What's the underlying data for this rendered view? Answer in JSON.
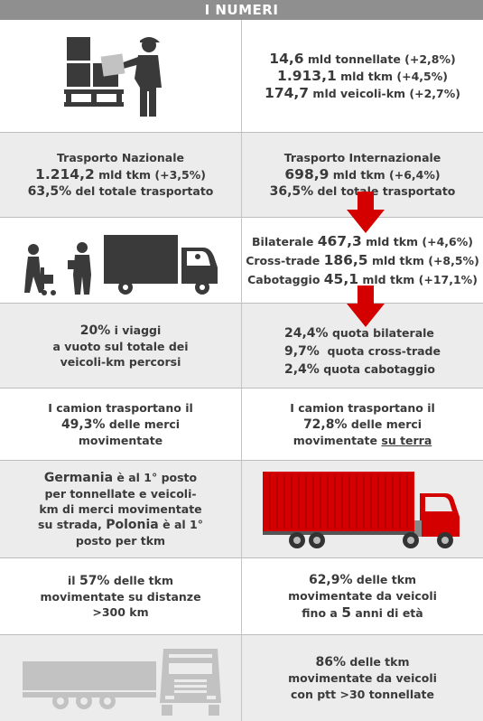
{
  "header": {
    "title": "I NUMERI"
  },
  "totals": {
    "tonnes_value": "14,6",
    "tonnes_text": "mld tonnellate (+2,8%)",
    "tkm_value": "1.913,1",
    "tkm_text": "mld tkm (+4,5%)",
    "vkm_value": "174,7",
    "vkm_text": "mld veicoli-km (+2,7%)"
  },
  "national": {
    "label": "Trasporto Nazionale",
    "value": "1.214,2",
    "value_text": "mld tkm (+3,5%)",
    "share_value": "63,5%",
    "share_text": "del totale trasportato"
  },
  "international": {
    "label": "Trasporto Internazionale",
    "value": "698,9",
    "value_text": "mld tkm (+6,4%)",
    "share_value": "36,5%",
    "share_text": "del totale trasportato"
  },
  "breakdown": {
    "bilateral_label": "Bilaterale",
    "bilateral_value": "467,3",
    "bilateral_text": "mld tkm (+4,6%)",
    "crosstrade_label": "Cross-trade",
    "crosstrade_value": "186,5",
    "crosstrade_text": "mld tkm (+8,5%)",
    "cabotage_label": "Cabotaggio",
    "cabotage_value": "45,1",
    "cabotage_text": "mld tkm (+17,1%)"
  },
  "empty": {
    "value": "20%",
    "line1": "i viaggi",
    "line2": "a vuoto sul totale dei",
    "line3": "veicoli-km percorsi"
  },
  "shares": {
    "bilateral_value": "24,4%",
    "bilateral_text": "quota bilaterale",
    "crosstrade_value": "9,7%",
    "crosstrade_text": "quota cross-trade",
    "cabotage_value": "2,4%",
    "cabotage_text": "quota cabotaggio"
  },
  "trucks_left": {
    "line1": "I camion trasportano il",
    "value": "49,3%",
    "line2": "delle merci",
    "line3": "movimentate"
  },
  "trucks_right": {
    "line1": "I camion trasportano il",
    "value": "72,8%",
    "line2": "delle merci",
    "line3a": "movimentate",
    "line3b": "su terra"
  },
  "ranking": {
    "country1": "Germania",
    "line1": "è al 1° posto",
    "line2": "per tonnellate e veicoli-",
    "line3": "km di merci movimentate",
    "line4a": "su strada,",
    "country2": "Polonia",
    "line4b": "è al 1°",
    "line5": "posto per tkm"
  },
  "distance": {
    "prefix": "il",
    "value": "57%",
    "line1": "delle tkm",
    "line2": "movimentate su distanze",
    "line3": ">300 km"
  },
  "age": {
    "value": "62,9%",
    "line1": "delle tkm",
    "line2": "movimentate da veicoli",
    "line3a": "fino a",
    "years": "5",
    "line3b": "anni di età"
  },
  "weight": {
    "value": "86%",
    "line1": "delle tkm",
    "line2": "movimentate da veicoli",
    "line3": "con ptt >30 tonnellate"
  },
  "colors": {
    "accent_red": "#d40000",
    "header_gray": "#8f8f8f",
    "cell_gray": "#ececec",
    "icon_dark": "#3a3a3a",
    "icon_light": "#c2c2c2"
  },
  "icons": [
    "worker-pallet-icon",
    "delivery-truck-icon",
    "red-down-arrow-icon",
    "red-container-truck-icon",
    "gray-truck-front-icon"
  ]
}
